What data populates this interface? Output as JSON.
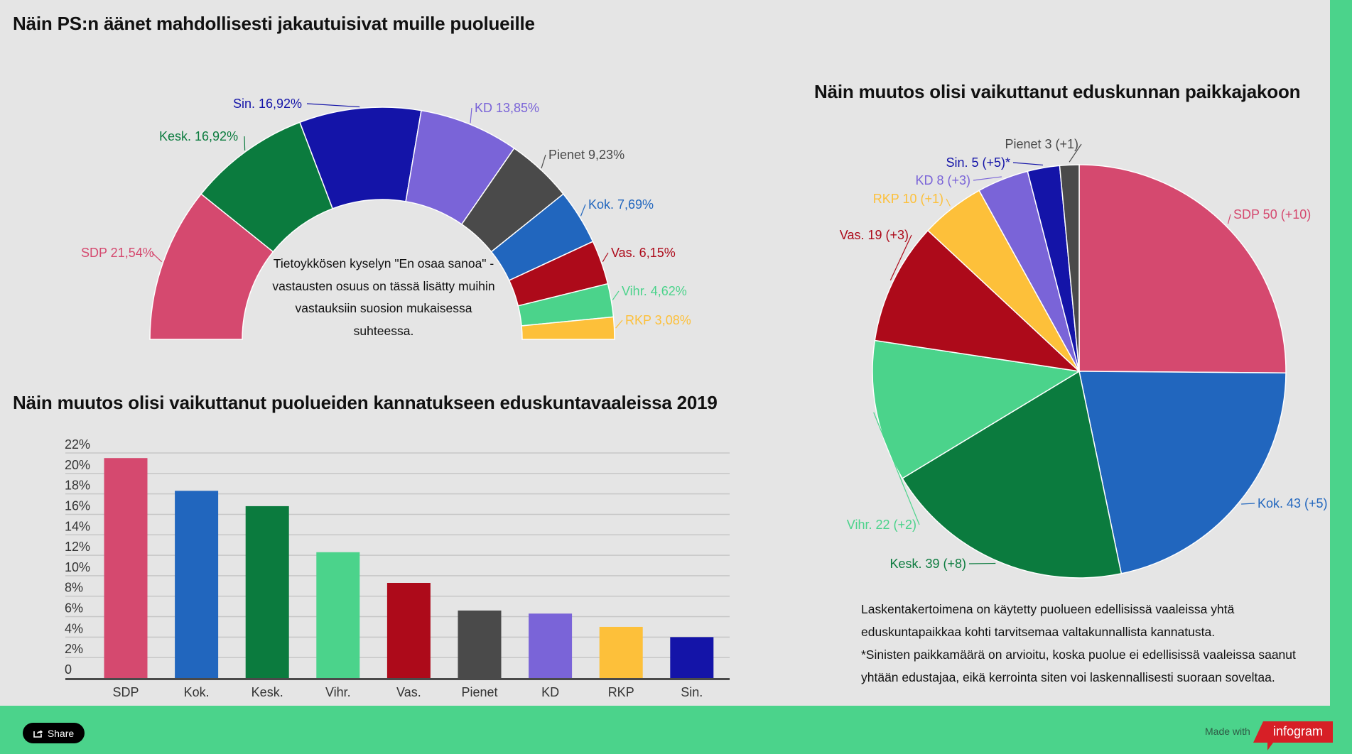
{
  "panel_titles": {
    "donut": "Näin PS:n äänet mahdollisesti jakautuisivat muille puolueille",
    "bar": "Näin muutos olisi vaikuttanut puolueiden kannatukseen eduskuntavaaleissa 2019",
    "pie": "Näin muutos olisi vaikuttanut eduskunnan paikkajakoon"
  },
  "donut_note_lines": [
    "Tietoykkösen kyselyn \"En osaa sanoa\" -",
    "vastausten osuus on tässä lisätty muihin",
    "vastauksiin suosion mukaisessa",
    "suhteessa."
  ],
  "pie_note_lines": [
    "Laskentakertoimena on käytetty puolueen edellisissä vaaleissa yhtä",
    "eduskuntapaikkaa kohti tarvitsemaa valtakunnallista kannatusta.",
    "*Sinisten paikkamäärä on arvioitu, koska puolue ei edellisissä vaaleissa saanut",
    "yhtään edustajaa, eikä kerrointa siten voi laskennallisesti suoraan soveltaa."
  ],
  "colors": {
    "SDP": "#d5496f",
    "Kesk.": "#0b7b3e",
    "Sin.": "#1414a8",
    "KD": "#7a64d8",
    "Pienet": "#4a4a4a",
    "Kok.": "#2166be",
    "Vas.": "#ad0a1a",
    "Vihr.": "#4bd38b",
    "RKP": "#fdc03a",
    "background": "#e5e5e5",
    "frame": "#4bd38b"
  },
  "chart_data": [
    {
      "type": "pie",
      "subtype": "semi-donut",
      "title": "Näin PS:n äänet mahdollisesti jakautuisivat muille puolueille",
      "categories": [
        "SDP",
        "Kesk.",
        "Sin.",
        "KD",
        "Pienet",
        "Kok.",
        "Vas.",
        "Vihr.",
        "RKP"
      ],
      "values": [
        21.54,
        16.92,
        16.92,
        13.85,
        9.23,
        7.69,
        6.15,
        4.62,
        3.08
      ],
      "labels": [
        "SDP 21,54%",
        "Kesk. 16,92%",
        "Sin. 16,92%",
        "KD 13,85%",
        "Pienet 9,23%",
        "Kok. 7,69%",
        "Vas. 6,15%",
        "Vihr. 4,62%",
        "RKP 3,08%"
      ],
      "unit": "%"
    },
    {
      "type": "bar",
      "title": "Näin muutos olisi vaikuttanut puolueiden kannatukseen eduskuntavaaleissa 2019",
      "categories": [
        "SDP",
        "Kok.",
        "Kesk.",
        "Vihr.",
        "Vas.",
        "Pienet",
        "KD",
        "RKP",
        "Sin."
      ],
      "values": [
        21.5,
        18.3,
        16.8,
        12.3,
        9.3,
        6.6,
        6.3,
        5.0,
        4.0
      ],
      "xlabel": "",
      "ylabel": "",
      "ylim": [
        0,
        22
      ],
      "yticks": [
        "0",
        "2%",
        "4%",
        "6%",
        "8%",
        "10%",
        "12%",
        "14%",
        "16%",
        "18%",
        "20%",
        "22%"
      ],
      "grid": true,
      "legend": "none"
    },
    {
      "type": "pie",
      "title": "Näin muutos olisi vaikuttanut eduskunnan paikkajakoon",
      "categories": [
        "SDP",
        "Kok.",
        "Kesk.",
        "Vihr.",
        "Vas.",
        "RKP",
        "KD",
        "Sin.",
        "Pienet"
      ],
      "values": [
        50,
        43,
        39,
        22,
        19,
        10,
        8,
        5,
        3
      ],
      "changes": [
        "+10",
        "+5",
        "+8",
        "+2",
        "+3",
        "+1",
        "+3",
        "+5",
        "+1"
      ],
      "labels": [
        "SDP 50 (+10)",
        "Kok. 43 (+5)",
        "Kesk. 39 (+8)",
        "Vihr. 22 (+2)",
        "Vas. 19 (+3)",
        "RKP 10 (+1)",
        "KD 8 (+3)",
        "Sin. 5 (+5)*",
        "Pienet 3 (+1)"
      ],
      "unit": "seats"
    }
  ],
  "footer": {
    "share_label": "Share",
    "made_with": "Made with",
    "brand": "infogram"
  }
}
